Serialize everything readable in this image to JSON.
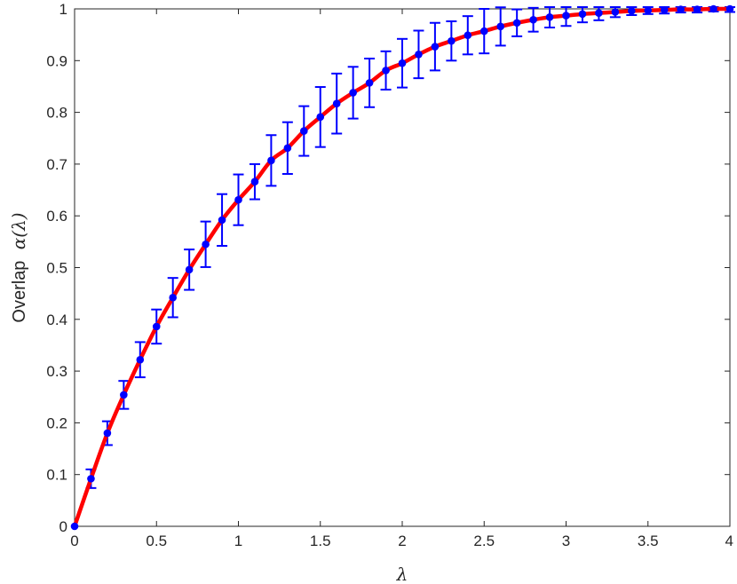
{
  "chart_data": {
    "type": "line",
    "xlabel": "λ",
    "ylabel_text": "Overlap",
    "ylabel_math": "α(λ)",
    "xlim": [
      0,
      4
    ],
    "ylim": [
      0,
      1
    ],
    "x_ticks": [
      "0",
      "0.5",
      "1",
      "1.5",
      "2",
      "2.5",
      "3",
      "3.5",
      "4"
    ],
    "y_ticks": [
      "0",
      "0.1",
      "0.2",
      "0.3",
      "0.4",
      "0.5",
      "0.6",
      "0.7",
      "0.8",
      "0.9",
      "1"
    ],
    "grid": false,
    "colors": {
      "curve": "#ff0000",
      "points": "#0000ff",
      "errorbars": "#0000ff",
      "axes": "#262626"
    },
    "series": [
      {
        "kind": "smooth-curve",
        "x": [
          0,
          0.1,
          0.2,
          0.3,
          0.4,
          0.5,
          0.6,
          0.7,
          0.8,
          0.9,
          1.0,
          1.1,
          1.2,
          1.3,
          1.4,
          1.5,
          1.6,
          1.7,
          1.8,
          1.9,
          2.0,
          2.1,
          2.2,
          2.3,
          2.4,
          2.5,
          2.6,
          2.7,
          2.8,
          2.9,
          3.0,
          3.1,
          3.2,
          3.3,
          3.4,
          3.5,
          3.6,
          3.7,
          3.8,
          3.9,
          4.0
        ],
        "y": [
          0,
          0.092,
          0.18,
          0.254,
          0.322,
          0.386,
          0.442,
          0.496,
          0.545,
          0.592,
          0.631,
          0.666,
          0.707,
          0.731,
          0.764,
          0.791,
          0.817,
          0.838,
          0.857,
          0.881,
          0.895,
          0.912,
          0.927,
          0.938,
          0.949,
          0.957,
          0.966,
          0.973,
          0.979,
          0.984,
          0.987,
          0.99,
          0.992,
          0.994,
          0.996,
          0.997,
          0.998,
          0.999,
          0.999,
          1.0,
          1.0
        ]
      },
      {
        "kind": "errorbar",
        "x": [
          0,
          0.1,
          0.2,
          0.3,
          0.4,
          0.5,
          0.6,
          0.7,
          0.8,
          0.9,
          1.0,
          1.1,
          1.2,
          1.3,
          1.4,
          1.5,
          1.6,
          1.7,
          1.8,
          1.9,
          2.0,
          2.1,
          2.2,
          2.3,
          2.4,
          2.5,
          2.6,
          2.7,
          2.8,
          2.9,
          3.0,
          3.1,
          3.2,
          3.3,
          3.4,
          3.5,
          3.6,
          3.7,
          3.8,
          3.9,
          4.0
        ],
        "y": [
          0,
          0.092,
          0.18,
          0.254,
          0.322,
          0.386,
          0.442,
          0.496,
          0.545,
          0.592,
          0.631,
          0.666,
          0.707,
          0.731,
          0.764,
          0.791,
          0.817,
          0.838,
          0.857,
          0.881,
          0.895,
          0.912,
          0.927,
          0.938,
          0.949,
          0.957,
          0.966,
          0.973,
          0.979,
          0.984,
          0.987,
          0.99,
          0.992,
          0.994,
          0.996,
          0.997,
          0.998,
          0.999,
          0.999,
          1.0,
          1.0
        ],
        "err": [
          0,
          0.018,
          0.023,
          0.027,
          0.034,
          0.033,
          0.038,
          0.039,
          0.044,
          0.05,
          0.049,
          0.034,
          0.049,
          0.05,
          0.048,
          0.058,
          0.058,
          0.05,
          0.047,
          0.037,
          0.047,
          0.046,
          0.046,
          0.038,
          0.037,
          0.043,
          0.037,
          0.026,
          0.023,
          0.02,
          0.02,
          0.016,
          0.014,
          0.01,
          0.008,
          0.007,
          0.007,
          0.006,
          0.006,
          0.005,
          0.006
        ]
      }
    ]
  }
}
